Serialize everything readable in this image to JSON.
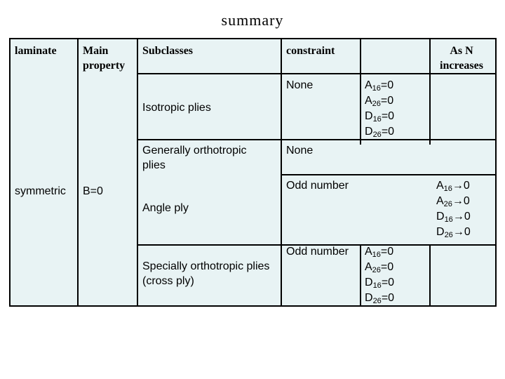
{
  "title": "summary",
  "headers": {
    "laminate": "laminate",
    "main_property": "Main property",
    "subclasses": "Subclasses",
    "constraint": "constraint",
    "blank": "",
    "as_n_increases": "As N increases"
  },
  "laminate_value": "symmetric",
  "main_property_value": "B=0",
  "rows": [
    {
      "subclass": "Isotropic plies",
      "constraint": "None",
      "conditions": [
        {
          "base": "A",
          "sub": "16",
          "rel": "=0"
        },
        {
          "base": "A",
          "sub": "26",
          "rel": "=0"
        },
        {
          "base": "D",
          "sub": "16",
          "rel": "=0"
        },
        {
          "base": "D",
          "sub": "26",
          "rel": "=0"
        }
      ],
      "as_n_increases": []
    },
    {
      "subclass": "Generally orthotropic plies",
      "constraint": "None",
      "conditions": [],
      "as_n_increases": []
    },
    {
      "subclass": "Angle ply",
      "constraint": "Odd number",
      "conditions": [],
      "as_n_increases": [
        {
          "base": "A",
          "sub": "16",
          "rel": "→0"
        },
        {
          "base": "A",
          "sub": "26",
          "rel": "→0"
        },
        {
          "base": "D",
          "sub": "16",
          "rel": "→0"
        },
        {
          "base": "D",
          "sub": "26",
          "rel": "→0"
        }
      ]
    },
    {
      "subclass": "Specially orthotropic plies (cross ply)",
      "constraint": "Odd number",
      "conditions": [
        {
          "base": "A",
          "sub": "16",
          "rel": "=0"
        },
        {
          "base": "A",
          "sub": "26",
          "rel": "=0"
        },
        {
          "base": "D",
          "sub": "16",
          "rel": "=0"
        },
        {
          "base": "D",
          "sub": "26",
          "rel": "=0"
        }
      ],
      "as_n_increases": []
    }
  ]
}
